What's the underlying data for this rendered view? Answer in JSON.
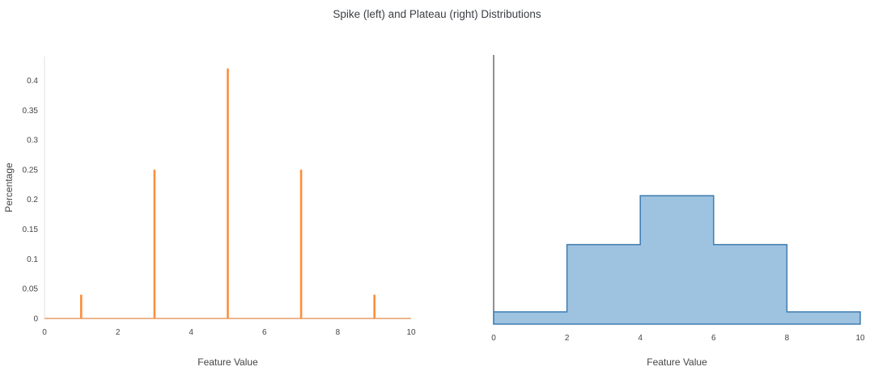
{
  "title": "Spike (left) and Plateau (right) Distributions",
  "colors": {
    "spike": "#fd8d3c",
    "plateau_fill": "#9ec3e0",
    "plateau_stroke": "#3d7bb0",
    "axis": "#999999",
    "zeroline": "#555555",
    "text": "#444444"
  },
  "chart_data": [
    {
      "type": "line",
      "name": "Spike distribution",
      "xlabel": "Feature Value",
      "ylabel": "Percentage",
      "xlim": [
        0,
        10
      ],
      "ylim": [
        0,
        0.44
      ],
      "x_ticks": [
        0,
        2,
        4,
        6,
        8,
        10
      ],
      "y_ticks": [
        0,
        0.05,
        0.1,
        0.15,
        0.2,
        0.25,
        0.3,
        0.35,
        0.4
      ],
      "grid": false,
      "legend": false,
      "series": [
        {
          "name": "spike",
          "x": [
            1,
            3,
            5,
            7,
            9
          ],
          "y": [
            0.04,
            0.25,
            0.42,
            0.25,
            0.04
          ],
          "baseline": 0
        }
      ]
    },
    {
      "type": "area",
      "name": "Plateau distribution",
      "xlabel": "Feature Value",
      "ylabel": "",
      "xlim": [
        0,
        10
      ],
      "ylim": [
        0,
        0.44
      ],
      "x_ticks": [
        0,
        2,
        4,
        6,
        8,
        10
      ],
      "y_ticks": [],
      "grid": false,
      "legend": false,
      "bin_edges": [
        0,
        2,
        4,
        6,
        8,
        10
      ],
      "values": [
        0.02,
        0.13,
        0.21,
        0.13,
        0.02
      ]
    }
  ]
}
